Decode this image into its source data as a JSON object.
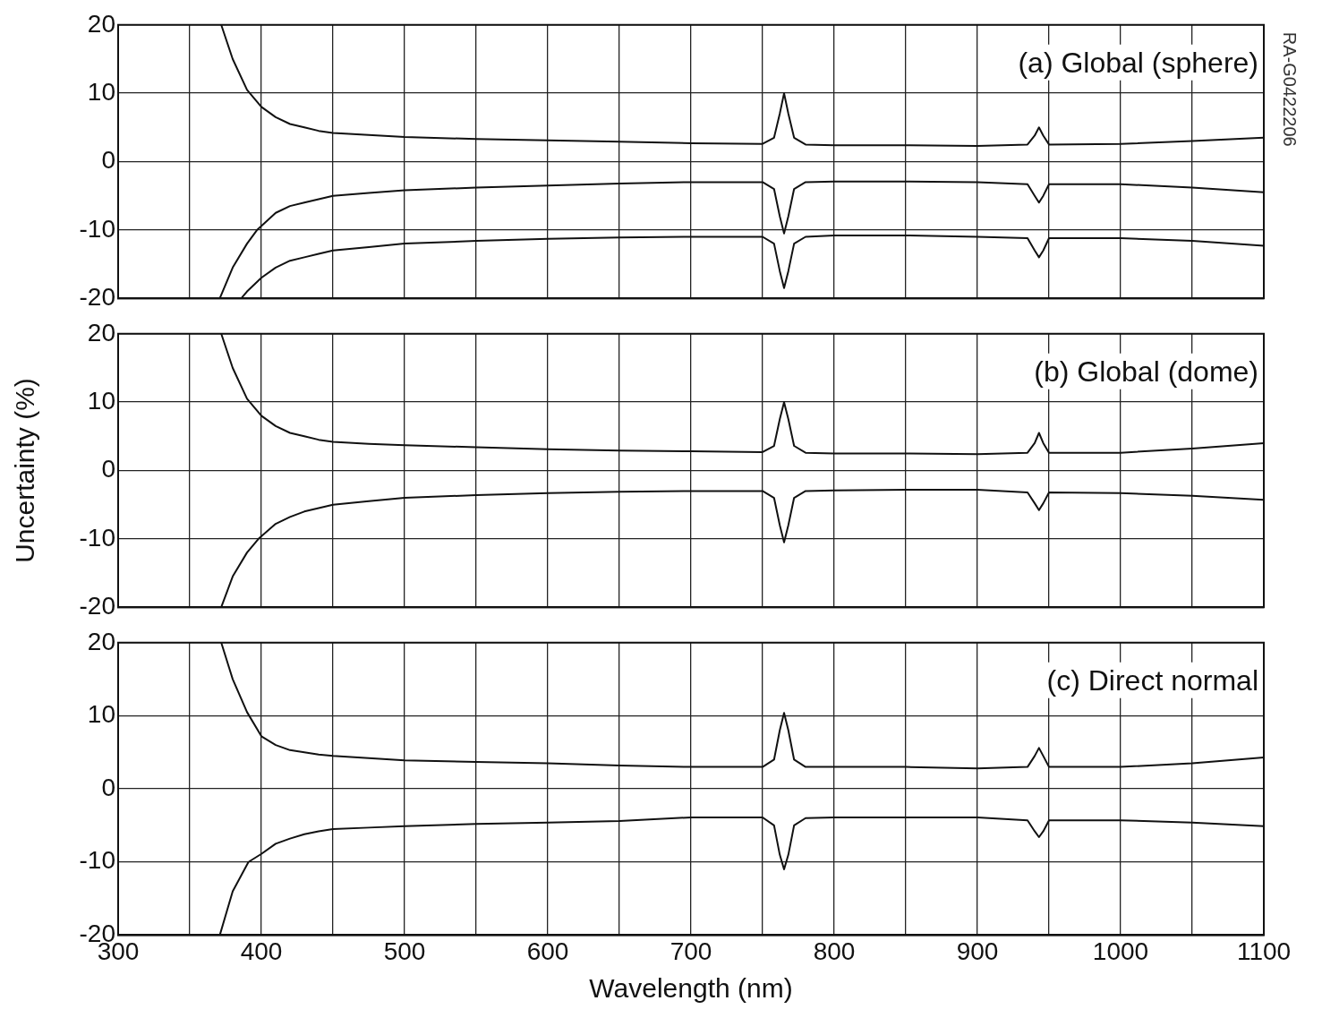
{
  "chart_data": [
    {
      "type": "line",
      "annotations": [
        "(a) Global (sphere)",
        "RA-G0422206"
      ],
      "xlim": [
        300,
        1100
      ],
      "xticks": [
        300,
        {
          "value": 350,
          "label": null
        },
        400,
        {
          "value": 450,
          "label": null
        },
        500,
        {
          "value": 550,
          "label": null
        },
        600,
        {
          "value": 650,
          "label": null
        },
        700,
        {
          "value": 750,
          "label": null
        },
        800,
        {
          "value": 850,
          "label": null
        },
        900,
        {
          "value": 950,
          "label": null
        },
        1000,
        {
          "value": 1050,
          "label": null
        },
        1100
      ],
      "ylim": [
        -20,
        20
      ],
      "yticks": [
        -20,
        -10,
        0,
        10,
        20
      ],
      "grid": true,
      "tick_labels": "y",
      "series": [
        {
          "color": "#111111",
          "x": [
            372,
            380,
            390,
            400,
            410,
            420,
            430,
            440,
            450,
            475,
            500,
            550,
            600,
            650,
            700,
            750,
            758,
            762,
            765,
            768,
            772,
            780,
            800,
            850,
            900,
            935,
            940,
            943,
            946,
            950,
            1000,
            1050,
            1100
          ],
          "values": [
            20,
            15,
            10.5,
            8,
            6.5,
            5.5,
            5,
            4.5,
            4.2,
            3.9,
            3.6,
            3.3,
            3.1,
            2.9,
            2.7,
            2.6,
            3.5,
            7,
            10,
            7,
            3.5,
            2.5,
            2.4,
            2.4,
            2.3,
            2.5,
            3.8,
            5,
            3.8,
            2.5,
            2.6,
            3,
            3.5
          ]
        },
        {
          "color": "#111111",
          "x": [
            371,
            380,
            390,
            397,
            410,
            420,
            430,
            440,
            450,
            475,
            500,
            550,
            600,
            650,
            700,
            750,
            758,
            762,
            765,
            768,
            772,
            780,
            800,
            850,
            900,
            935,
            940,
            943,
            946,
            950,
            1000,
            1050,
            1100
          ],
          "values": [
            -20,
            -15.5,
            -12,
            -10,
            -7.5,
            -6.5,
            -6,
            -5.5,
            -5,
            -4.6,
            -4.2,
            -3.8,
            -3.5,
            -3.2,
            -3,
            -3,
            -4,
            -8,
            -10.5,
            -8,
            -4,
            -3,
            -2.9,
            -2.9,
            -3,
            -3.3,
            -5,
            -6,
            -5,
            -3.3,
            -3.3,
            -3.8,
            -4.5
          ]
        },
        {
          "color": "#111111",
          "x": [
            386,
            390,
            400,
            410,
            420,
            430,
            440,
            450,
            475,
            500,
            550,
            600,
            650,
            700,
            750,
            758,
            762,
            765,
            768,
            772,
            780,
            800,
            850,
            900,
            935,
            940,
            943,
            946,
            950,
            1000,
            1050,
            1100
          ],
          "values": [
            -20,
            -19,
            -17,
            -15.5,
            -14.5,
            -14,
            -13.5,
            -13,
            -12.5,
            -12,
            -11.6,
            -11.3,
            -11.1,
            -11,
            -11,
            -12,
            -16,
            -18.5,
            -16,
            -12,
            -11,
            -10.8,
            -10.8,
            -11,
            -11.2,
            -13,
            -14,
            -13,
            -11.2,
            -11.2,
            -11.6,
            -12.3
          ]
        }
      ]
    },
    {
      "type": "line",
      "ylabel": "Uncertainty (%)",
      "annotations": [
        "(b) Global (dome)"
      ],
      "xlim": [
        300,
        1100
      ],
      "xticks": [
        300,
        {
          "value": 350,
          "label": null
        },
        400,
        {
          "value": 450,
          "label": null
        },
        500,
        {
          "value": 550,
          "label": null
        },
        600,
        {
          "value": 650,
          "label": null
        },
        700,
        {
          "value": 750,
          "label": null
        },
        800,
        {
          "value": 850,
          "label": null
        },
        900,
        {
          "value": 950,
          "label": null
        },
        1000,
        {
          "value": 1050,
          "label": null
        },
        1100
      ],
      "ylim": [
        -20,
        20
      ],
      "yticks": [
        -20,
        -10,
        0,
        10,
        20
      ],
      "grid": true,
      "tick_labels": "y",
      "series": [
        {
          "color": "#111111",
          "x": [
            372,
            380,
            390,
            400,
            410,
            420,
            430,
            440,
            450,
            475,
            500,
            550,
            600,
            650,
            700,
            750,
            758,
            762,
            765,
            768,
            772,
            780,
            800,
            850,
            900,
            935,
            940,
            943,
            946,
            950,
            1000,
            1050,
            1100
          ],
          "values": [
            20,
            15,
            10.5,
            8,
            6.5,
            5.5,
            5,
            4.5,
            4.2,
            3.9,
            3.7,
            3.4,
            3.1,
            2.9,
            2.8,
            2.7,
            3.6,
            7.5,
            10,
            7.5,
            3.6,
            2.6,
            2.5,
            2.5,
            2.4,
            2.6,
            4,
            5.5,
            4,
            2.6,
            2.6,
            3.2,
            4
          ]
        },
        {
          "color": "#111111",
          "x": [
            372,
            380,
            390,
            398,
            410,
            420,
            430,
            440,
            450,
            475,
            500,
            550,
            600,
            650,
            700,
            750,
            758,
            762,
            765,
            768,
            772,
            780,
            800,
            850,
            900,
            935,
            940,
            943,
            946,
            950,
            1000,
            1050,
            1100
          ],
          "values": [
            -20,
            -15.5,
            -12,
            -10,
            -7.8,
            -6.8,
            -6,
            -5.5,
            -5,
            -4.5,
            -4,
            -3.6,
            -3.3,
            -3.1,
            -3,
            -3,
            -4,
            -8,
            -10.5,
            -8,
            -4,
            -3,
            -2.9,
            -2.8,
            -2.8,
            -3.2,
            -4.8,
            -5.8,
            -4.8,
            -3.2,
            -3.3,
            -3.7,
            -4.3
          ]
        }
      ]
    },
    {
      "type": "line",
      "xlabel": "Wavelength (nm)",
      "annotations": [
        "(c) Direct normal"
      ],
      "xlim": [
        300,
        1100
      ],
      "xticks": [
        300,
        {
          "value": 350,
          "label": null
        },
        400,
        {
          "value": 450,
          "label": null
        },
        500,
        {
          "value": 550,
          "label": null
        },
        600,
        {
          "value": 650,
          "label": null
        },
        700,
        {
          "value": 750,
          "label": null
        },
        800,
        {
          "value": 850,
          "label": null
        },
        900,
        {
          "value": 950,
          "label": null
        },
        1000,
        {
          "value": 1050,
          "label": null
        },
        1100
      ],
      "ylim": [
        -20,
        20
      ],
      "yticks": [
        -20,
        -10,
        0,
        10,
        20
      ],
      "grid": true,
      "series": [
        {
          "color": "#111111",
          "x": [
            372,
            380,
            390,
            400,
            410,
            420,
            430,
            440,
            450,
            475,
            500,
            550,
            600,
            650,
            700,
            750,
            758,
            762,
            765,
            768,
            772,
            780,
            800,
            850,
            900,
            935,
            940,
            943,
            946,
            950,
            1000,
            1050,
            1100
          ],
          "values": [
            20,
            15,
            10.5,
            7.2,
            6,
            5.3,
            5,
            4.7,
            4.5,
            4.2,
            3.9,
            3.7,
            3.5,
            3.2,
            3,
            3,
            4,
            8,
            10.4,
            8,
            4,
            3,
            3,
            3,
            2.8,
            3,
            4.5,
            5.6,
            4.5,
            3,
            3,
            3.5,
            4.3
          ]
        },
        {
          "color": "#111111",
          "x": [
            371,
            380,
            391,
            400,
            410,
            420,
            430,
            440,
            450,
            475,
            500,
            550,
            600,
            650,
            700,
            750,
            758,
            762,
            765,
            768,
            772,
            780,
            800,
            850,
            900,
            935,
            940,
            943,
            946,
            950,
            1000,
            1050,
            1100
          ],
          "values": [
            -20,
            -14,
            -10,
            -8.9,
            -7.5,
            -6.8,
            -6.2,
            -5.8,
            -5.5,
            -5.3,
            -5.1,
            -4.8,
            -4.6,
            -4.4,
            -3.9,
            -3.9,
            -5,
            -9,
            -11,
            -9,
            -5,
            -4,
            -3.9,
            -3.9,
            -3.9,
            -4.3,
            -5.8,
            -6.6,
            -5.8,
            -4.3,
            -4.3,
            -4.6,
            -5.1
          ]
        }
      ]
    }
  ]
}
